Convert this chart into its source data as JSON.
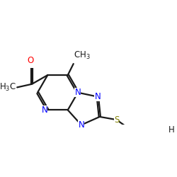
{
  "background": "#ffffff",
  "bond_color": "#1a1a1a",
  "N_color": "#0000ff",
  "O_color": "#ff0000",
  "S_color": "#808000",
  "fs": 8.5,
  "lw": 1.6,
  "xlim": [
    -2.8,
    3.6
  ],
  "ylim": [
    -1.6,
    2.0
  ]
}
